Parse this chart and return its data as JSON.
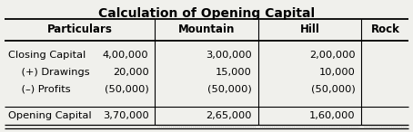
{
  "title": "Calculation of Opening Capital",
  "columns": [
    "Particulars",
    "Mountain",
    "Hill",
    "Rock"
  ],
  "rows": [
    [
      "Closing Capital",
      "4,00,000",
      "3,00,000",
      "2,00,000"
    ],
    [
      "    (+) Drawings",
      "20,000",
      "15,000",
      "10,000"
    ],
    [
      "    (–) Profits",
      "(50,000)",
      "(50,000)",
      "(50,000)"
    ],
    [
      "Opening Capital",
      "3,70,000",
      "2,65,000",
      "1,60,000"
    ]
  ],
  "title_fontsize": 10,
  "header_fontsize": 8.5,
  "cell_fontsize": 8.2,
  "bg_color": "#f0f0ec"
}
